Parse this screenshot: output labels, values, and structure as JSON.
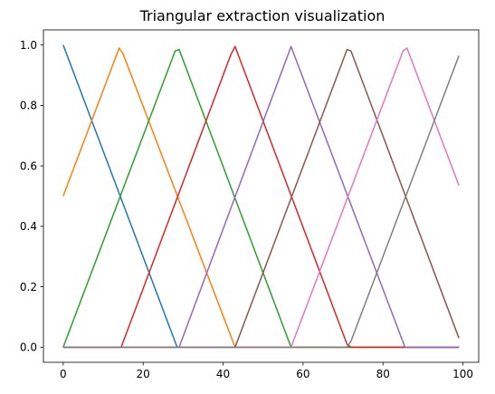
{
  "chart_data": {
    "type": "line",
    "title": "Triangular extraction visualization",
    "xlabel": "",
    "ylabel": "",
    "xlim": [
      -4.95,
      103.95
    ],
    "ylim": [
      -0.05,
      1.05
    ],
    "x_ticks": [
      0,
      20,
      40,
      60,
      80,
      100
    ],
    "y_ticks": [
      0.0,
      0.2,
      0.4,
      0.6,
      0.8,
      1.0
    ],
    "x_tick_labels": [
      "0",
      "20",
      "40",
      "60",
      "80",
      "100"
    ],
    "y_tick_labels": [
      "0.0",
      "0.2",
      "0.4",
      "0.6",
      "0.8",
      "1.0"
    ],
    "grid": false,
    "legend": "none",
    "series": [
      {
        "color": "#1f77b4",
        "x": [
          0,
          28.5,
          29,
          99
        ],
        "y": [
          1.0,
          0.0,
          0.0,
          0.0
        ]
      },
      {
        "color": "#ff7f0e",
        "x": [
          0,
          14,
          15,
          43,
          99
        ],
        "y": [
          0.5,
          0.99,
          0.97,
          0.0,
          0.0
        ]
      },
      {
        "color": "#2ca02c",
        "x": [
          0,
          28,
          29,
          57,
          99
        ],
        "y": [
          0.0,
          0.98,
          0.985,
          0.0,
          0.0
        ]
      },
      {
        "color": "#d62728",
        "x": [
          0,
          14.5,
          42,
          43,
          71,
          72,
          99
        ],
        "y": [
          0.0,
          0.0,
          0.97,
          0.995,
          0.01,
          0.0,
          0.0
        ]
      },
      {
        "color": "#9467bd",
        "x": [
          0,
          29,
          57,
          58,
          85.5,
          99
        ],
        "y": [
          0.0,
          0.0,
          0.995,
          0.96,
          0.0,
          0.0
        ]
      },
      {
        "color": "#8c564b",
        "x": [
          0,
          43,
          71,
          72,
          99
        ],
        "y": [
          0.0,
          0.0,
          0.985,
          0.98,
          0.03
        ]
      },
      {
        "color": "#e377c2",
        "x": [
          0,
          57,
          85,
          86,
          99
        ],
        "y": [
          0.0,
          0.0,
          0.98,
          0.99,
          0.535
        ]
      },
      {
        "color": "#7f7f7f",
        "x": [
          0,
          71,
          72,
          99
        ],
        "y": [
          0.0,
          0.0,
          0.02,
          0.965
        ]
      }
    ]
  }
}
